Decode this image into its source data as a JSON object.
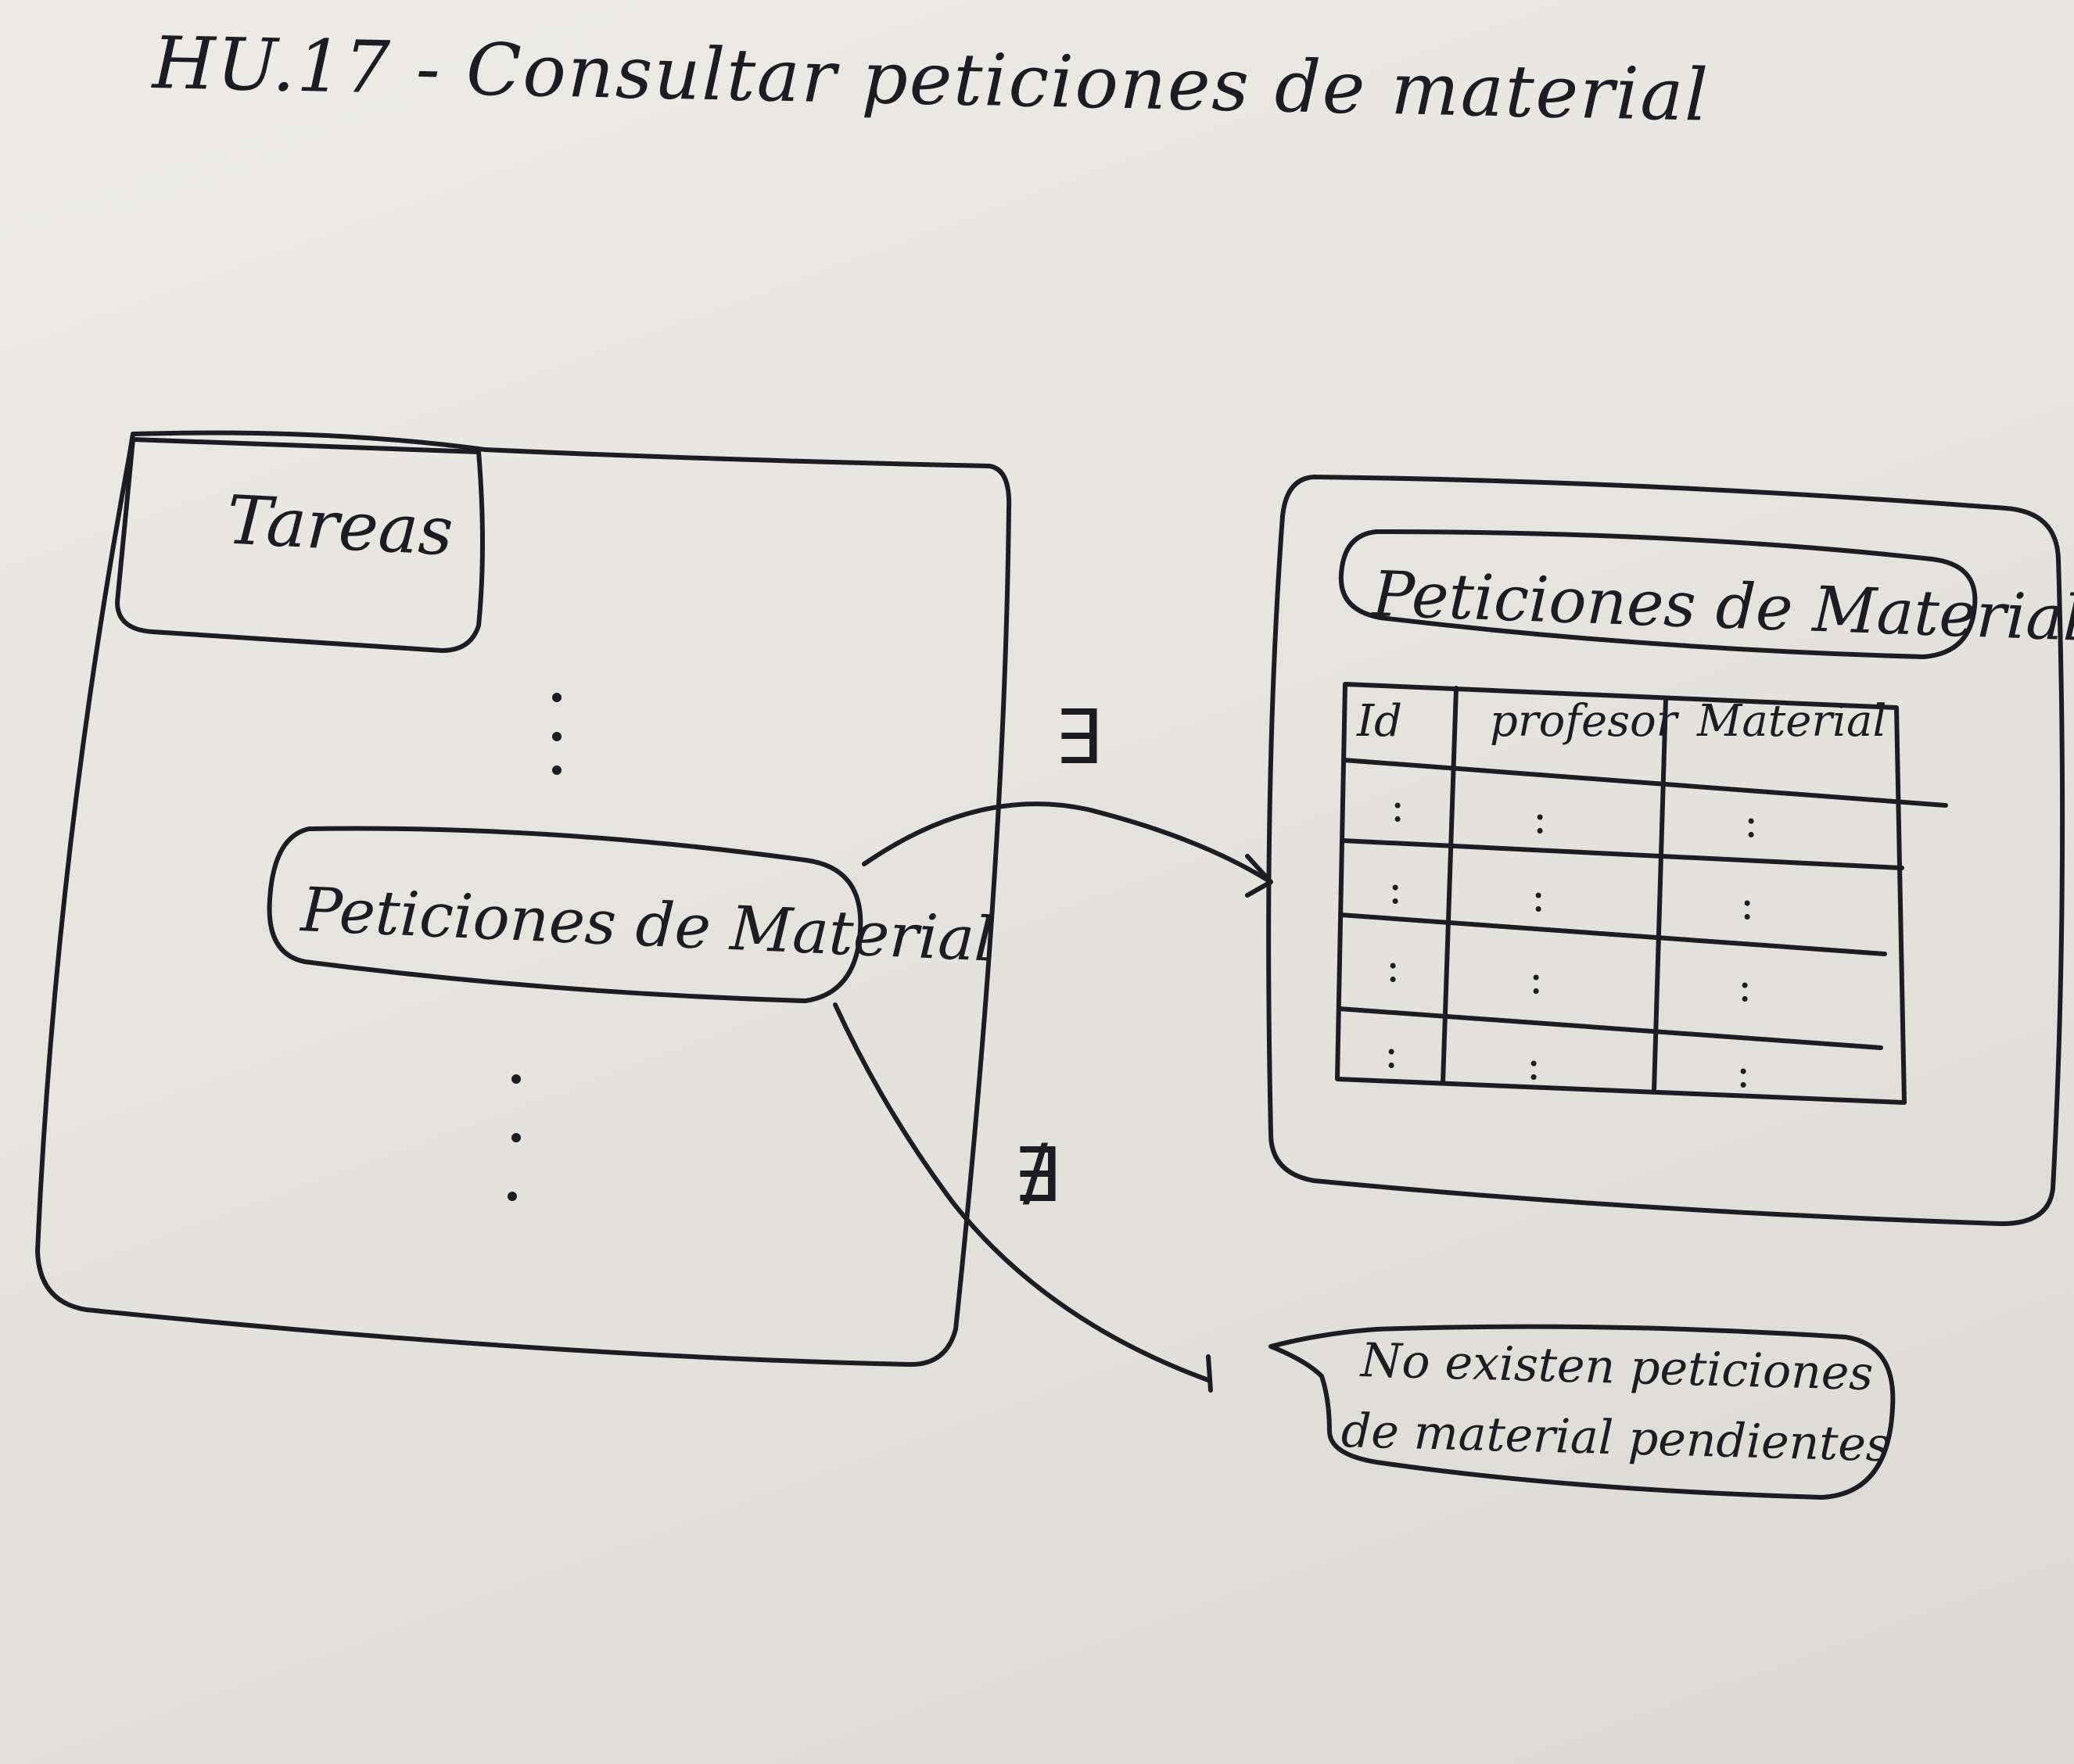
{
  "page": {
    "title": "HU.17 - Consultar peticiones de material"
  },
  "screen_main": {
    "tab_label": "Tareas",
    "menu_item_label": "Peticiones de Material"
  },
  "screen_requests": {
    "title": "Peticiones de Materiales",
    "table": {
      "headers": [
        "Id",
        "profesor",
        "Material"
      ],
      "rows": [
        [
          ":",
          ":",
          ":"
        ],
        [
          ":",
          ":",
          ":"
        ],
        [
          ":",
          ":",
          ":"
        ],
        [
          ":",
          ":",
          ":"
        ]
      ]
    }
  },
  "transitions": {
    "exists_symbol": "∃",
    "not_exists_symbol": "∄"
  },
  "empty_message": {
    "line1": "No existen peticiones",
    "line2": "de material pendientes"
  },
  "colors": {
    "ink": "#1c1c22",
    "paper": "#e6e4df"
  }
}
